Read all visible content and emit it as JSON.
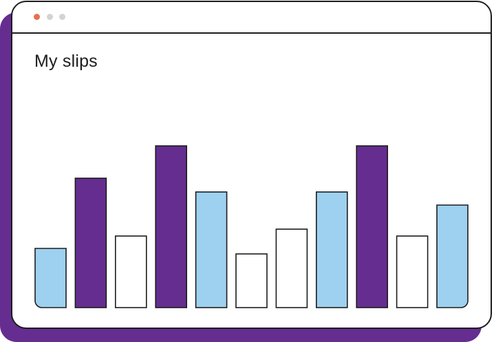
{
  "window": {
    "controls": [
      {
        "name": "close",
        "color": "#e8704f"
      },
      {
        "name": "minimize",
        "color": "#d3d3d3"
      },
      {
        "name": "maximize",
        "color": "#d3d3d3"
      }
    ]
  },
  "page": {
    "title": "My slips"
  },
  "colors": {
    "purple": "#652d90",
    "light_blue": "#9dd1ef",
    "white": "#ffffff",
    "outline": "#1c1c1c"
  },
  "chart_data": {
    "type": "bar",
    "title": "",
    "xlabel": "",
    "ylabel": "",
    "ylim": [
      0,
      250
    ],
    "grid": false,
    "values": [
      86,
      188,
      104,
      235,
      168,
      78,
      114,
      168,
      235,
      104,
      149
    ],
    "bar_colors": [
      "light_blue",
      "purple",
      "white",
      "purple",
      "light_blue",
      "white",
      "white",
      "light_blue",
      "purple",
      "white",
      "light_blue"
    ]
  }
}
